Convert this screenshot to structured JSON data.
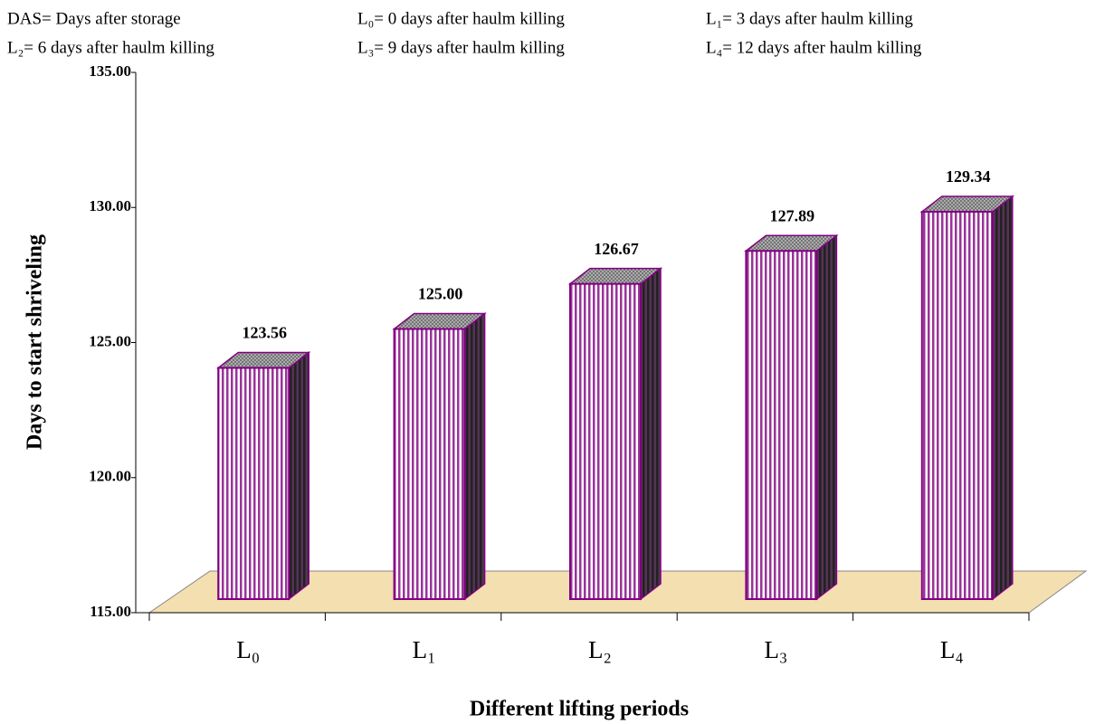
{
  "notes": [
    "DAS= Days after storage",
    "L₀= 0 days after haulm killing",
    "L₁= 3 days after haulm killing",
    "L₂= 6 days after haulm killing",
    "L₃= 9 days after haulm killing",
    "L₄= 12 days after haulm killing"
  ],
  "chart_data": {
    "type": "bar3d",
    "x_label": "Different lifting periods",
    "y_label": "Days to start shriveling",
    "categories": [
      "L₀",
      "L₁",
      "L₂",
      "L₃",
      "L₄"
    ],
    "values": [
      123.56,
      125.0,
      126.67,
      127.89,
      129.34
    ],
    "value_labels": [
      "123.56",
      "125.00",
      "126.67",
      "127.89",
      "129.34"
    ],
    "color": "#800080",
    "ylim": [
      115,
      135
    ],
    "yticks": [
      {
        "value": 115,
        "label": "115.00"
      },
      {
        "value": 120,
        "label": "120.00"
      },
      {
        "value": 125,
        "label": "125.00"
      },
      {
        "value": 130,
        "label": "130.00"
      },
      {
        "value": 135,
        "label": "135.00"
      }
    ],
    "grid": false
  }
}
